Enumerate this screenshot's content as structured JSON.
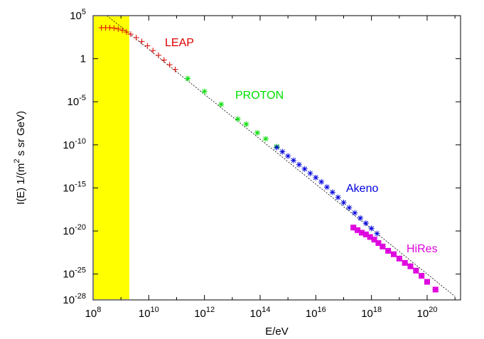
{
  "chart_data": {
    "type": "scatter",
    "x_scale": "log",
    "y_scale": "log",
    "xlabel": "E/eV",
    "ylabel": "I(E) 1/(m² s sr GeV)",
    "xlim_log10": [
      8,
      21.2
    ],
    "ylim_log10": [
      -28,
      5
    ],
    "x_ticks": [
      {
        "exp": 8,
        "base": "10",
        "sup": "8"
      },
      {
        "exp": 10,
        "base": "10",
        "sup": "10"
      },
      {
        "exp": 12,
        "base": "10",
        "sup": "12"
      },
      {
        "exp": 14,
        "base": "10",
        "sup": "14"
      },
      {
        "exp": 16,
        "base": "10",
        "sup": "16"
      },
      {
        "exp": 18,
        "base": "10",
        "sup": "18"
      },
      {
        "exp": 20,
        "base": "10",
        "sup": "20"
      }
    ],
    "y_ticks": [
      {
        "exp": 5,
        "base": "10",
        "sup": "5"
      },
      {
        "exp": 0,
        "base": "1",
        "sup": ""
      },
      {
        "exp": -5,
        "base": "10",
        "sup": "-5"
      },
      {
        "exp": -10,
        "base": "10",
        "sup": "-10"
      },
      {
        "exp": -15,
        "base": "10",
        "sup": "-15"
      },
      {
        "exp": -20,
        "base": "10",
        "sup": "-20"
      },
      {
        "exp": -25,
        "base": "10",
        "sup": "-25"
      },
      {
        "exp": -28,
        "base": "10",
        "sup": "-28"
      }
    ],
    "shaded_region": {
      "x_log10": [
        8,
        9.3
      ],
      "color": "#ffff00"
    },
    "fit_line": {
      "x_log10": [
        8.5,
        21.0
      ],
      "y_log10": [
        5.0,
        -27.6
      ],
      "color": "#000000",
      "style": "dotted"
    },
    "series": [
      {
        "name": "LEAP",
        "color": "#dd0000",
        "marker": "plus",
        "x_log10": [
          8.3,
          8.45,
          8.6,
          8.75,
          8.9,
          9.05,
          9.2,
          9.35,
          9.55,
          9.75,
          9.95,
          10.15,
          10.35,
          10.55,
          10.75,
          10.95
        ],
        "y_log10": [
          3.6,
          3.6,
          3.6,
          3.55,
          3.45,
          3.3,
          3.1,
          2.85,
          2.45,
          2.0,
          1.5,
          0.95,
          0.4,
          -0.15,
          -0.7,
          -1.25
        ]
      },
      {
        "name": "PROTON",
        "color": "#00dd00",
        "marker": "star",
        "x_log10": [
          11.4,
          12.0,
          12.6,
          13.2,
          13.5,
          13.9,
          14.2,
          14.6
        ],
        "y_log10": [
          -2.3,
          -3.8,
          -5.3,
          -7.0,
          -7.6,
          -8.6,
          -9.3,
          -10.2
        ]
      },
      {
        "name": "Akeno",
        "color": "#0000dd",
        "marker": "star",
        "x_log10": [
          14.6,
          14.8,
          15.0,
          15.2,
          15.4,
          15.6,
          15.8,
          16.0,
          16.2,
          16.4,
          16.6,
          16.8,
          17.0,
          17.2,
          17.4,
          17.6,
          17.8,
          18.0,
          18.2
        ],
        "y_log10": [
          -10.3,
          -10.8,
          -11.3,
          -11.8,
          -12.3,
          -12.8,
          -13.3,
          -13.8,
          -14.3,
          -14.9,
          -15.5,
          -16.1,
          -16.7,
          -17.3,
          -17.9,
          -18.5,
          -19.1,
          -19.7,
          -20.3
        ]
      },
      {
        "name": "HiRes",
        "color": "#dd00dd",
        "marker": "boxed-cross",
        "x_log10": [
          17.35,
          17.5,
          17.65,
          17.8,
          17.95,
          18.1,
          18.25,
          18.4,
          18.6,
          18.8,
          19.0,
          19.2,
          19.4,
          19.6,
          19.8,
          20.0,
          20.3
        ],
        "y_log10": [
          -19.6,
          -19.9,
          -20.2,
          -20.4,
          -20.7,
          -21.0,
          -21.4,
          -21.8,
          -22.3,
          -22.7,
          -23.2,
          -23.7,
          -24.1,
          -24.6,
          -25.2,
          -25.9,
          -26.8
        ]
      }
    ]
  },
  "colors": {
    "leap": "#dd0000",
    "proton": "#00dd00",
    "akeno": "#0000dd",
    "hires": "#dd00dd",
    "shade": "#ffff00"
  }
}
